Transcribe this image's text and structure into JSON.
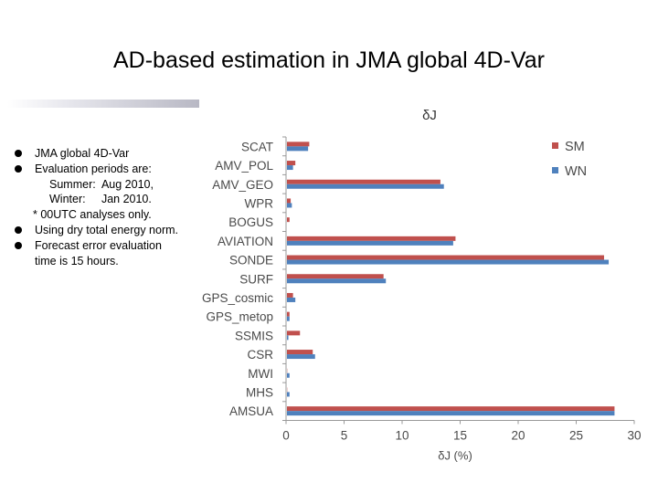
{
  "slide": {
    "title": "AD-based estimation in JMA global 4D-Var",
    "bullets": [
      "JMA global 4D-Var",
      "Evaluation periods are:",
      "Summer:  Aug 2010,",
      "Winter:     Jan 2010.",
      "* 00UTC analyses only.",
      "Using  dry  total  energy norm.",
      "Forecast error evaluation time is 15 hours."
    ]
  },
  "chart_data": {
    "type": "bar",
    "orientation": "horizontal",
    "title": "δJ",
    "xlabel": "δJ (%)",
    "ylabel": "",
    "xlim": [
      0,
      30
    ],
    "xticks": [
      "0",
      "5",
      "10",
      "15",
      "20",
      "25",
      "30"
    ],
    "grid": false,
    "legend": "top-right",
    "categories": [
      "SCAT",
      "AMV_POL",
      "AMV_GEO",
      "WPR",
      "BOGUS",
      "AVIATION",
      "SONDE",
      "SURF",
      "GPS_cosmic",
      "GPS_metop",
      "SSMIS",
      "CSR",
      "MWI",
      "MHS",
      "AMSUA"
    ],
    "series": [
      {
        "name": "SM",
        "color": "#c0504d",
        "values": [
          2.0,
          0.8,
          13.3,
          0.4,
          0.3,
          14.6,
          27.4,
          8.4,
          0.6,
          0.3,
          1.2,
          2.3,
          0.1,
          0.1,
          28.3
        ]
      },
      {
        "name": "WN",
        "color": "#4f81bd",
        "values": [
          1.9,
          0.6,
          13.6,
          0.5,
          0.0,
          14.4,
          27.8,
          8.6,
          0.8,
          0.3,
          0.2,
          2.5,
          0.3,
          0.3,
          28.3
        ]
      }
    ]
  }
}
